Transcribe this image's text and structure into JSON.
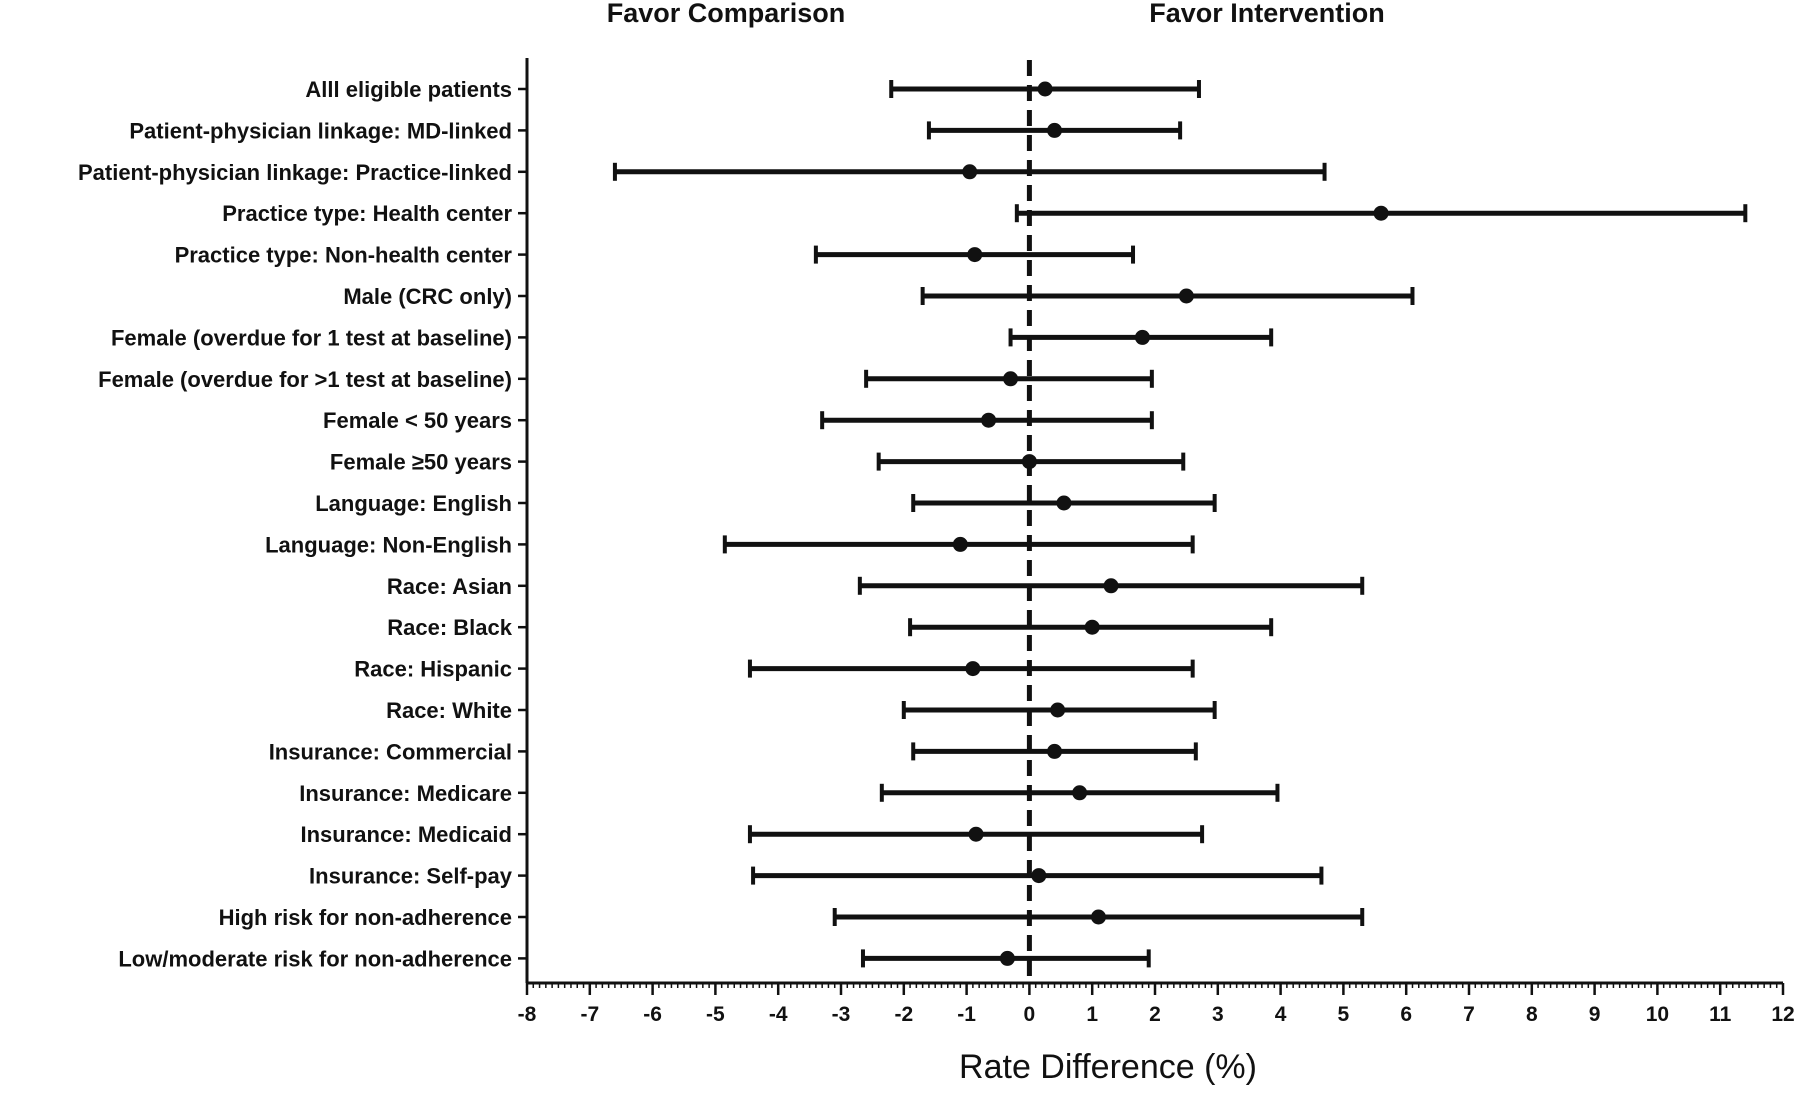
{
  "chart_data": {
    "type": "forest",
    "title": "",
    "header_left": "Favor Comparison",
    "header_right": "Favor Intervention",
    "xlabel": "Rate Difference (%)",
    "ylabel": "",
    "xlim": [
      -8,
      12
    ],
    "x_ticks": [
      -8,
      -7,
      -6,
      -5,
      -4,
      -3,
      -2,
      -1,
      0,
      1,
      2,
      3,
      4,
      5,
      6,
      7,
      8,
      9,
      10,
      11,
      12
    ],
    "reference_line": 0,
    "reference_line_style": "dashed",
    "grid": false,
    "colors": {
      "marks": "#111111"
    },
    "categories": [
      "Alll eligible patients",
      "Patient-physician linkage: MD-linked",
      "Patient-physician linkage: Practice-linked",
      "Practice type: Health center",
      "Practice type: Non-health center",
      "Male (CRC only)",
      "Female (overdue for 1 test at baseline)",
      "Female (overdue for >1 test at baseline)",
      "Female < 50 years",
      "Female ≥50 years",
      "Language: English",
      "Language: Non-English",
      "Race: Asian",
      "Race: Black",
      "Race: Hispanic",
      "Race: White",
      "Insurance: Commercial",
      "Insurance: Medicare",
      "Insurance: Medicaid",
      "Insurance: Self-pay",
      "High risk for non-adherence",
      "Low/moderate risk for non-adherence"
    ],
    "estimates": [
      0.25,
      0.4,
      -0.95,
      5.6,
      -0.87,
      2.5,
      1.8,
      -0.3,
      -0.65,
      0.0,
      0.55,
      -1.1,
      1.3,
      1.0,
      -0.9,
      0.45,
      0.4,
      0.8,
      -0.85,
      0.15,
      1.1,
      -0.35
    ],
    "ci_lower": [
      -2.2,
      -1.6,
      -6.6,
      -0.2,
      -3.4,
      -1.7,
      -0.3,
      -2.6,
      -3.3,
      -2.4,
      -1.85,
      -4.85,
      -2.7,
      -1.9,
      -4.45,
      -2.0,
      -1.85,
      -2.35,
      -4.45,
      -4.4,
      -3.1,
      -2.65
    ],
    "ci_upper": [
      2.7,
      2.4,
      4.7,
      11.4,
      1.65,
      6.1,
      3.85,
      1.95,
      1.95,
      2.45,
      2.95,
      2.6,
      5.3,
      3.85,
      2.6,
      2.95,
      2.65,
      3.95,
      2.75,
      4.65,
      5.3,
      1.9
    ]
  }
}
